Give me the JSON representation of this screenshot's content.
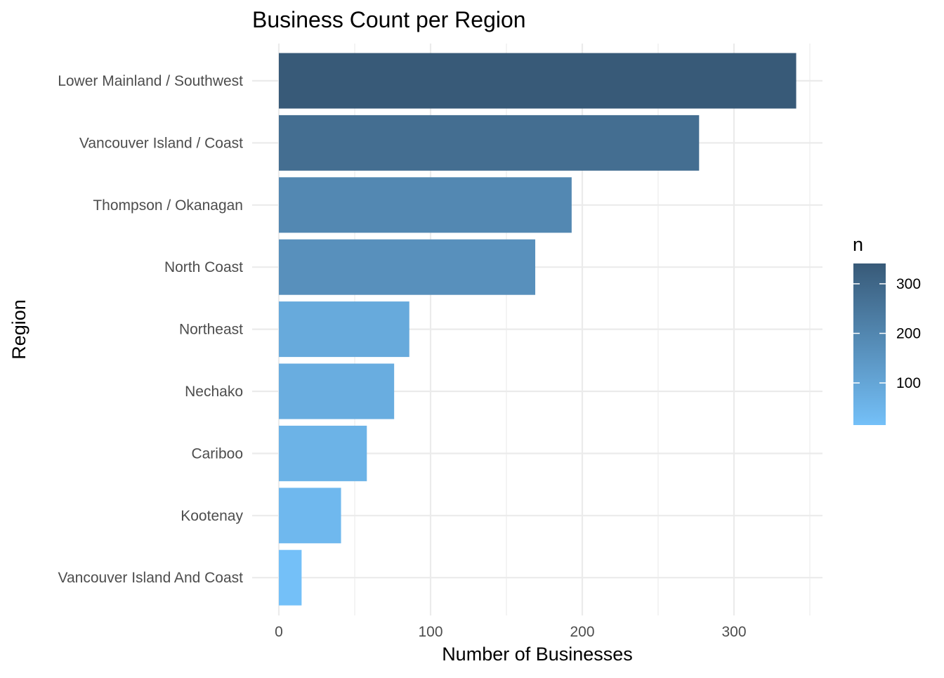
{
  "chart_data": {
    "type": "bar",
    "orientation": "horizontal",
    "title": "Business Count per Region",
    "xlabel": "Number of Businesses",
    "ylabel": "Region",
    "categories": [
      "Lower Mainland / Southwest",
      "Vancouver Island / Coast",
      "Thompson / Okanagan",
      "North Coast",
      "Northeast",
      "Nechako",
      "Cariboo",
      "Kootenay",
      "Vancouver Island And Coast"
    ],
    "values": [
      341,
      277,
      193,
      169,
      86,
      76,
      58,
      41,
      15
    ],
    "xlim": [
      0,
      360
    ],
    "x_ticks": [
      0,
      100,
      200,
      300
    ],
    "grid": true,
    "legend": {
      "title": "n",
      "placement": "right",
      "type": "colorbar",
      "ticks": [
        100,
        200,
        300
      ],
      "range": [
        15,
        341
      ],
      "color_low": "#74c0f8",
      "color_high": "#385a78"
    }
  }
}
